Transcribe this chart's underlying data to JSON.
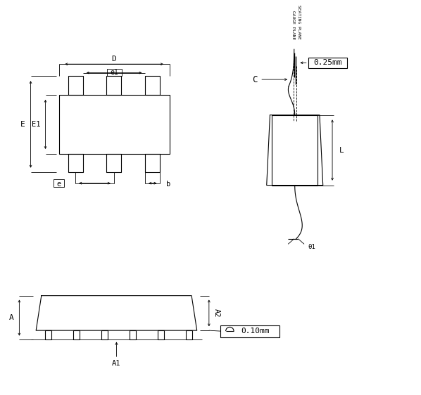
{
  "bg_color": "#ffffff",
  "line_color": "#000000",
  "lw": 0.8,
  "tlw": 0.6,
  "label_0p25": "0.25mm",
  "label_0p10": "0.10mm",
  "label_gauge": "GAUGE PLANE",
  "label_seating": "SEATING PLANE",
  "label_C": "C",
  "label_L": "L",
  "label_D": "D",
  "label_e1": "e1",
  "label_E": "E",
  "label_E1": "E1",
  "label_e": "e",
  "label_b": "b",
  "label_A": "A",
  "label_A1": "A1",
  "label_A2": "A2",
  "label_t1": "θ1"
}
